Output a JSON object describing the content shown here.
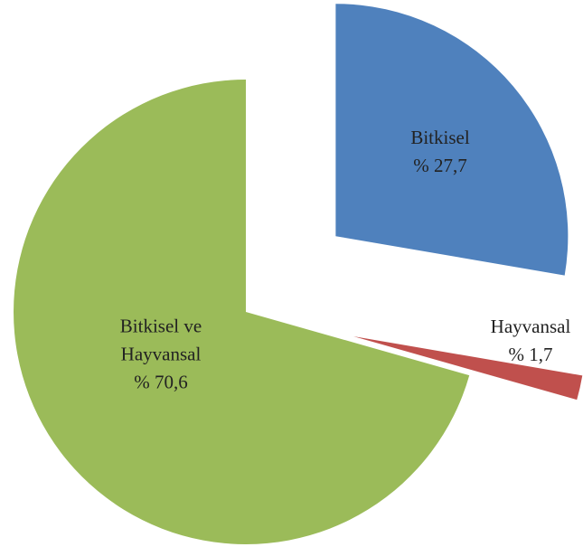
{
  "chart_data": {
    "type": "pie",
    "categories": [
      "Bitkisel",
      "Hayvansal",
      "Bitkisel ve Hayvansal"
    ],
    "values": [
      27.7,
      1.7,
      70.6
    ],
    "value_labels": [
      "% 27,7",
      "% 1,7",
      "% 70,6"
    ],
    "colors": [
      "#4f81bd",
      "#c0504d",
      "#9bbb59"
    ]
  }
}
